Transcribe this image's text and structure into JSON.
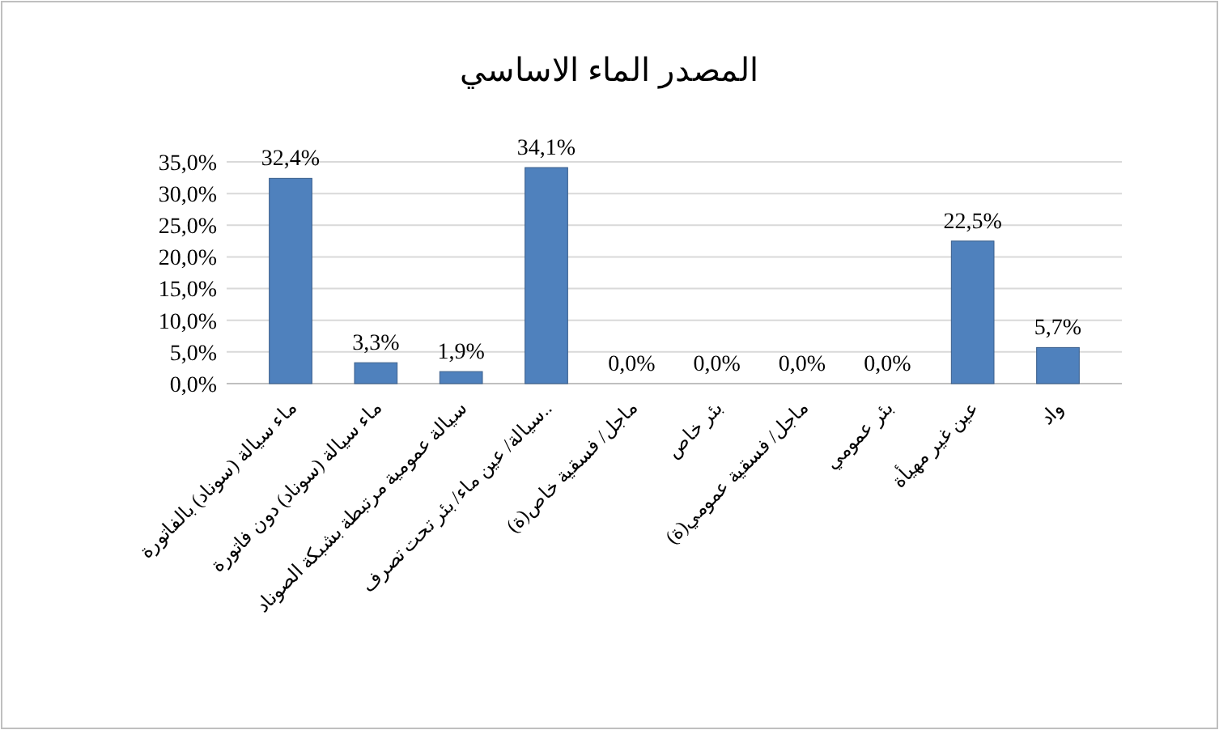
{
  "chart_data": {
    "type": "bar",
    "title": "المصدر الماء الاساسي",
    "categories": [
      "ماء سيالة (سوناد) بالفاتورة",
      "ماء سيالة (سوناد) دون فاتورة",
      "سيالة عمومية مرتبطة بشبكة الصوناد",
      "سيالة/ عين ماء/ بئر تحت تصرف..",
      "ماجل/ فسقية خاص(ة)",
      "بئر خاص",
      "ماجل/ فسقية عمومي(ة)",
      "بئر عمومي",
      "عين غير مهيأة",
      "واد"
    ],
    "values": [
      32.4,
      3.3,
      1.9,
      34.1,
      0.0,
      0.0,
      0.0,
      0.0,
      22.5,
      5.7
    ],
    "value_labels": [
      "32,4%",
      "3,3%",
      "1,9%",
      "34,1%",
      "0,0%",
      "0,0%",
      "0,0%",
      "0,0%",
      "22,5%",
      "5,7%"
    ],
    "color": "#4f81bd",
    "ylim": [
      0,
      35
    ],
    "yticks": [
      {
        "value": 0,
        "label": "0,0%"
      },
      {
        "value": 5,
        "label": "5,0%"
      },
      {
        "value": 10,
        "label": "10,0%"
      },
      {
        "value": 15,
        "label": "15,0%"
      },
      {
        "value": 20,
        "label": "20,0%"
      },
      {
        "value": 25,
        "label": "25,0%"
      },
      {
        "value": 30,
        "label": "30,0%"
      },
      {
        "value": 35,
        "label": "35,0%"
      }
    ],
    "grid": true
  }
}
